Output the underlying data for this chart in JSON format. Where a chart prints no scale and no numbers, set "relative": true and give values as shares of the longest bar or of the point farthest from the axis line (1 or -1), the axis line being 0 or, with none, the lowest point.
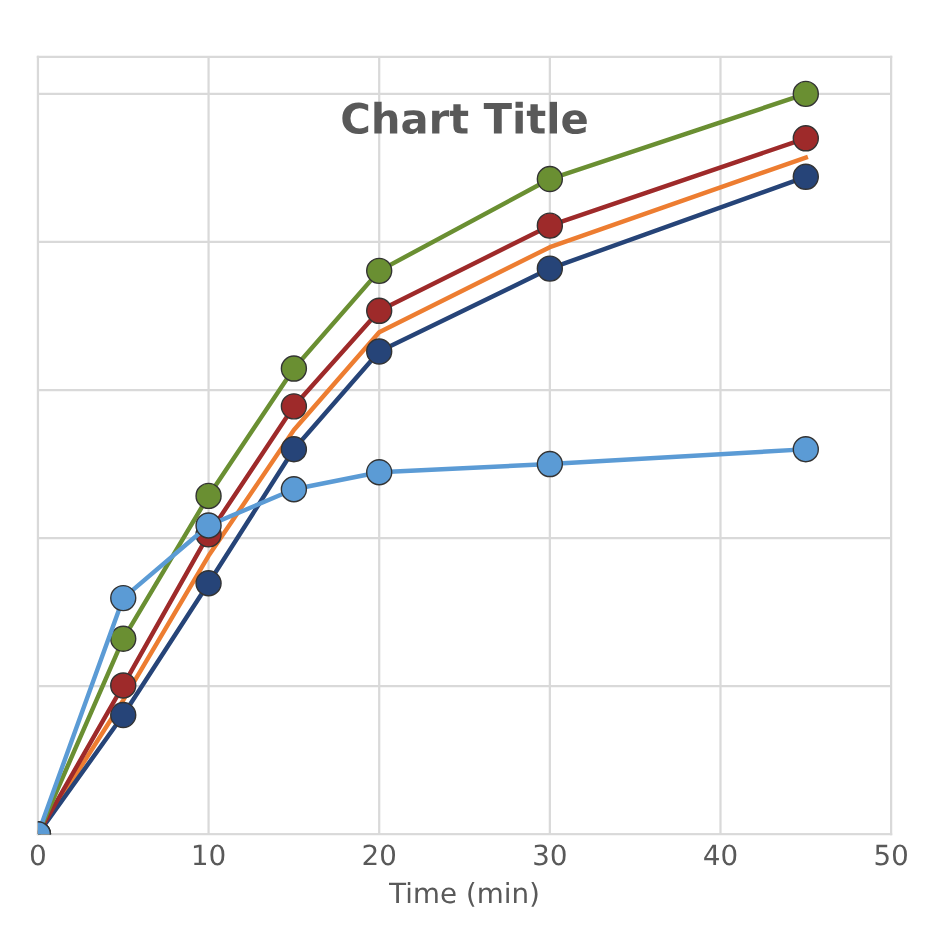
{
  "chart_data": {
    "type": "line",
    "title": "Chart Title",
    "xlabel": "Time (min)",
    "relative": true,
    "x": [
      0,
      5,
      10,
      15,
      20,
      30,
      45
    ],
    "xlim": [
      0,
      50
    ],
    "xticks": [
      0,
      10,
      20,
      30,
      40,
      50
    ],
    "grid": true,
    "marker": "circle",
    "line_style": "solid",
    "tick_labels": "x",
    "series": [
      {
        "color": "#ed7d31",
        "values": [
          0,
          0.181,
          0.376,
          0.546,
          0.678,
          0.793,
          0.914
        ],
        "marker": "none"
      },
      {
        "color": "#264478",
        "values": [
          0,
          0.161,
          0.339,
          0.52,
          0.652,
          0.764,
          0.888
        ]
      },
      {
        "color": "#9e2a2a",
        "values": [
          0,
          0.201,
          0.405,
          0.578,
          0.707,
          0.822,
          0.94
        ]
      },
      {
        "color": "#6a8f32",
        "values": [
          0,
          0.264,
          0.457,
          0.629,
          0.761,
          0.885,
          1
        ]
      },
      {
        "color": "#5b9bd5",
        "values": [
          0,
          0.319,
          0.417,
          0.466,
          0.489,
          0.5,
          0.52
        ]
      }
    ]
  }
}
